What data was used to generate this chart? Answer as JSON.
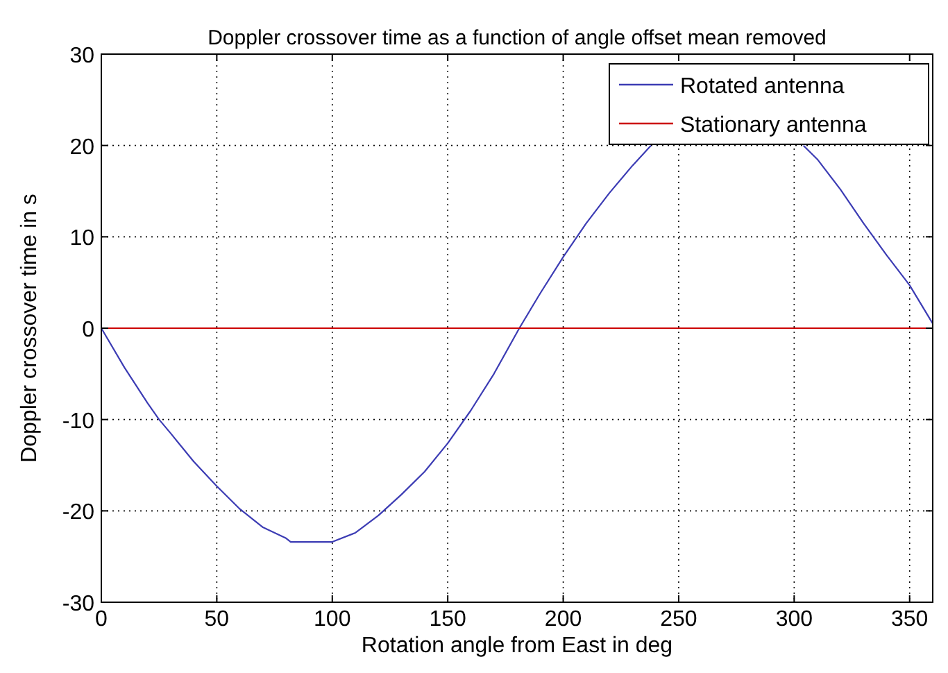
{
  "chart_data": {
    "type": "line",
    "title": "Doppler crossover time as a function of angle offset mean removed",
    "xlabel": "Rotation angle from East in deg",
    "ylabel": "Doppler crossover time in s",
    "xlim": [
      0,
      360
    ],
    "xticks": [
      0,
      50,
      100,
      150,
      200,
      250,
      300,
      350
    ],
    "ylim": [
      -30,
      30
    ],
    "yticks": [
      -30,
      -20,
      -10,
      0,
      10,
      20,
      30
    ],
    "grid": true,
    "legend": "top right",
    "line_style": "solid",
    "series": [
      {
        "name": "Rotated antenna",
        "color": "#3c3cb4",
        "x": [
          0,
          10,
          20,
          25,
          30,
          40,
          50,
          60,
          70,
          80,
          82,
          100,
          110,
          120,
          130,
          140,
          150,
          160,
          170,
          181,
          190,
          200,
          210,
          220,
          230,
          238,
          270,
          304,
          310,
          320,
          330,
          340,
          350,
          360
        ],
        "values": [
          0,
          -4.3,
          -8.2,
          -10,
          -11.5,
          -14.6,
          -17.3,
          -19.8,
          -21.8,
          -23,
          -23.4,
          -23.4,
          -22.4,
          -20.5,
          -18.2,
          -15.7,
          -12.6,
          -9,
          -5,
          0,
          3.8,
          7.8,
          11.5,
          14.8,
          17.8,
          20,
          null,
          20,
          18.5,
          15.2,
          11.5,
          8,
          4.7,
          0.5
        ]
      },
      {
        "name": "Stationary antenna",
        "color": "#cc0000",
        "x": [
          0,
          360
        ],
        "values": [
          0,
          0
        ]
      }
    ]
  }
}
